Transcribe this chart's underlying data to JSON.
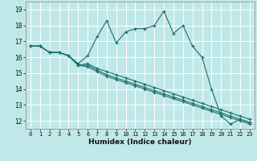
{
  "title": "",
  "xlabel": "Humidex (Indice chaleur)",
  "bg_color": "#c0e8e8",
  "grid_color": "#ffffff",
  "line_color": "#1e6e6e",
  "xlim": [
    -0.5,
    23.5
  ],
  "ylim": [
    11.5,
    19.5
  ],
  "yticks": [
    12,
    13,
    14,
    15,
    16,
    17,
    18,
    19
  ],
  "xticks": [
    0,
    1,
    2,
    3,
    4,
    5,
    6,
    7,
    8,
    9,
    10,
    11,
    12,
    13,
    14,
    15,
    16,
    17,
    18,
    19,
    20,
    21,
    22,
    23
  ],
  "series": [
    {
      "x": [
        0,
        1,
        2,
        3,
        4,
        5,
        6,
        7,
        8,
        9,
        10,
        11,
        12,
        13,
        14,
        15,
        16,
        17,
        18,
        19,
        20,
        21,
        22,
        23
      ],
      "y": [
        16.7,
        16.7,
        16.3,
        16.3,
        16.1,
        15.6,
        16.1,
        17.3,
        18.3,
        16.9,
        17.6,
        17.8,
        17.8,
        18.0,
        18.9,
        17.5,
        18.0,
        16.7,
        16.0,
        14.0,
        12.3,
        11.8,
        12.1,
        11.9
      ]
    },
    {
      "x": [
        0,
        1,
        2,
        3,
        4,
        5,
        6,
        7,
        8,
        9,
        10,
        11,
        12,
        13,
        14,
        15,
        16,
        17,
        18,
        19,
        20,
        21,
        22,
        23
      ],
      "y": [
        16.7,
        16.7,
        16.3,
        16.3,
        16.1,
        15.5,
        15.6,
        15.3,
        15.1,
        14.9,
        14.7,
        14.5,
        14.3,
        14.1,
        13.9,
        13.7,
        13.5,
        13.3,
        13.1,
        12.9,
        12.7,
        12.5,
        12.3,
        12.1
      ]
    },
    {
      "x": [
        0,
        1,
        2,
        3,
        4,
        5,
        6,
        7,
        8,
        9,
        10,
        11,
        12,
        13,
        14,
        15,
        16,
        17,
        18,
        19,
        20,
        21,
        22,
        23
      ],
      "y": [
        16.7,
        16.7,
        16.3,
        16.3,
        16.1,
        15.5,
        15.5,
        15.2,
        14.9,
        14.7,
        14.5,
        14.3,
        14.1,
        13.9,
        13.7,
        13.5,
        13.3,
        13.1,
        12.9,
        12.7,
        12.5,
        12.3,
        12.1,
        11.9
      ]
    },
    {
      "x": [
        0,
        1,
        2,
        3,
        4,
        5,
        6,
        7,
        8,
        9,
        10,
        11,
        12,
        13,
        14,
        15,
        16,
        17,
        18,
        19,
        20,
        21,
        22,
        23
      ],
      "y": [
        16.7,
        16.7,
        16.3,
        16.3,
        16.1,
        15.5,
        15.4,
        15.1,
        14.8,
        14.6,
        14.4,
        14.2,
        14.0,
        13.8,
        13.6,
        13.4,
        13.2,
        13.0,
        12.8,
        12.6,
        12.4,
        12.2,
        12.0,
        11.8
      ]
    }
  ]
}
